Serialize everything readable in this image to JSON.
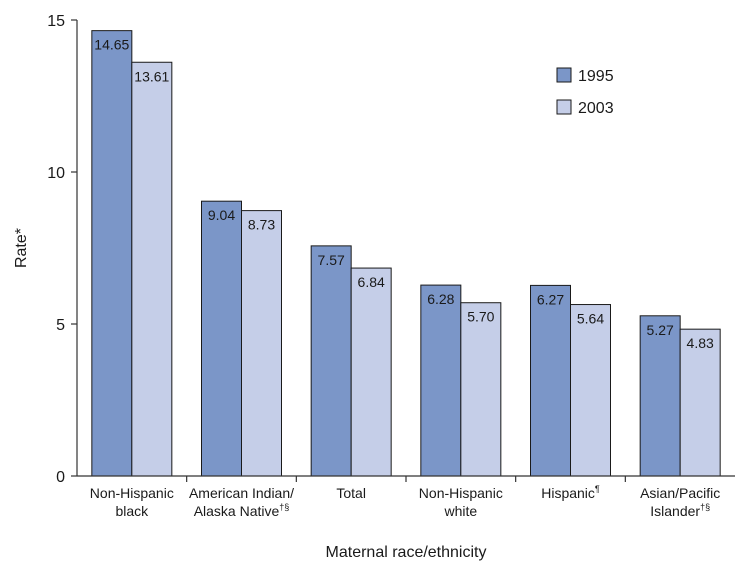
{
  "chart_data": {
    "type": "bar",
    "title": "",
    "xlabel": "Maternal race/ethnicity",
    "ylabel": "Rate*",
    "ylim": [
      0,
      15
    ],
    "yticks": [
      "0",
      "5",
      "10",
      "15"
    ],
    "grid": false,
    "legend_position": "top-right",
    "categories": [
      {
        "lines": [
          "Non-Hispanic",
          "black"
        ],
        "sup": ""
      },
      {
        "lines": [
          "American Indian/",
          "Alaska Native"
        ],
        "sup": "†§"
      },
      {
        "lines": [
          "Total"
        ],
        "sup": ""
      },
      {
        "lines": [
          "Non-Hispanic",
          "white"
        ],
        "sup": ""
      },
      {
        "lines": [
          "Hispanic"
        ],
        "sup": "¶"
      },
      {
        "lines": [
          "Asian/Pacific",
          "Islander"
        ],
        "sup": "†§"
      }
    ],
    "series": [
      {
        "name": "1995",
        "color": "#7b96c8",
        "values": [
          14.65,
          9.04,
          7.57,
          6.28,
          6.27,
          5.27
        ],
        "labels": [
          "14.65",
          "9.04",
          "7.57",
          "6.28",
          "6.27",
          "5.27"
        ]
      },
      {
        "name": "2003",
        "color": "#c5cee8",
        "values": [
          13.61,
          8.73,
          6.84,
          5.7,
          5.64,
          4.83
        ],
        "labels": [
          "13.61",
          "8.73",
          "6.84",
          "5.70",
          "5.64",
          "4.83"
        ]
      }
    ]
  }
}
